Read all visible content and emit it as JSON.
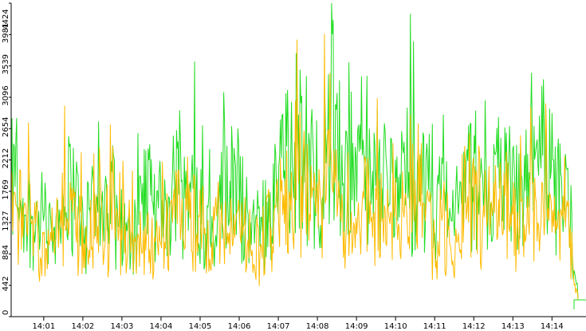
{
  "chart_data": {
    "type": "line",
    "title": "",
    "xlabel": "",
    "ylabel": "",
    "x_axis": {
      "ticks": [
        "14:01",
        "14:02",
        "14:03",
        "14:04",
        "14:05",
        "14:06",
        "14:07",
        "14:08",
        "14:09",
        "14:10",
        "14:11",
        "14:12",
        "14:13",
        "14:14"
      ],
      "range": [
        "14:00:10",
        "14:14:40"
      ]
    },
    "y_axis": {
      "ticks": [
        0,
        442,
        884,
        1327,
        1769,
        2212,
        2654,
        3096,
        3539,
        3981,
        4424
      ],
      "range": [
        0,
        4424
      ],
      "label_orientation": "vertical"
    },
    "grid": false,
    "legend": "none",
    "series": [
      {
        "color": "#22dd22",
        "points_per_minute_approx": [
          [
            2350,
            2200,
            1800,
            1700
          ],
          [
            1600,
            2050,
            2300,
            1500
          ],
          [
            1700,
            1950,
            1800,
            1500
          ],
          [
            1550,
            2300,
            1700,
            1750
          ],
          [
            2400,
            2050,
            2200,
            1600
          ],
          [
            1900,
            2150,
            1950,
            1900
          ],
          [
            1500,
            2000,
            2500,
            2800
          ],
          [
            3400,
            2600,
            2400,
            3500
          ],
          [
            2600,
            2100,
            2900,
            2200
          ],
          [
            2800,
            2500,
            2200,
            2300
          ],
          [
            2450,
            2000,
            1950,
            1750
          ],
          [
            2300,
            2600,
            2550,
            2500
          ],
          [
            2700,
            2300,
            2200,
            2500
          ],
          [
            2600,
            2350,
            2050,
            600
          ]
        ]
      },
      {
        "color": "#ffbb00",
        "points_per_minute_approx": [
          [
            1900,
            1700,
            1300,
            1000
          ],
          [
            1100,
            1650,
            1800,
            1200
          ],
          [
            1300,
            1500,
            1400,
            1100
          ],
          [
            1200,
            1700,
            1300,
            1350
          ],
          [
            1800,
            1600,
            1700,
            1200
          ],
          [
            1500,
            1650,
            1550,
            1500
          ],
          [
            1200,
            1600,
            1900,
            2100
          ],
          [
            2400,
            1900,
            1700,
            2500
          ],
          [
            1900,
            1500,
            2100,
            1600
          ],
          [
            2000,
            1800,
            1600,
            1700
          ],
          [
            1800,
            1400,
            1350,
            1200
          ],
          [
            1700,
            1900,
            1850,
            1800
          ],
          [
            1950,
            1650,
            1600,
            1800
          ],
          [
            1900,
            1700,
            1500,
            500
          ]
        ]
      }
    ]
  }
}
